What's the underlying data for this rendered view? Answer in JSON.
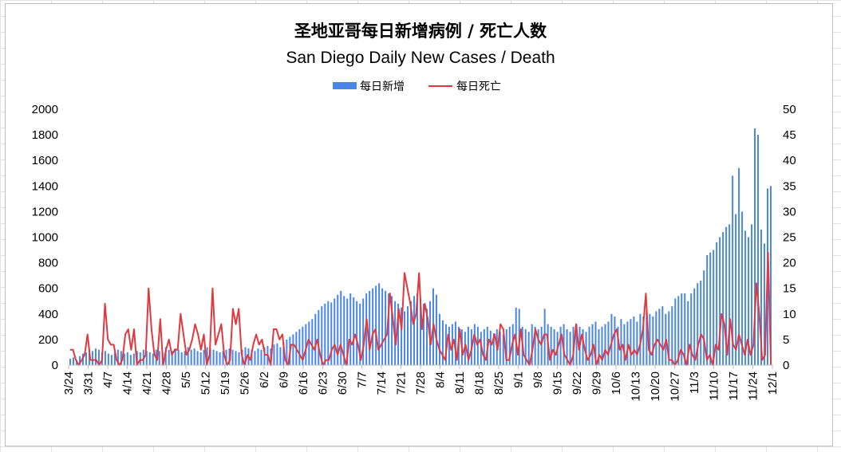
{
  "chart_data": {
    "type": "bar+line",
    "title": "圣地亚哥每日新增病例 / 死亡人数",
    "subtitle": "San Diego Daily New Cases / Death",
    "legend_position": "top",
    "grid": false,
    "x_tick_labels": [
      "3/24",
      "3/31",
      "4/7",
      "4/14",
      "4/21",
      "4/28",
      "5/5",
      "5/12",
      "5/19",
      "5/26",
      "6/2",
      "6/9",
      "6/16",
      "6/23",
      "6/30",
      "7/7",
      "7/14",
      "7/21",
      "7/28",
      "8/4",
      "8/11",
      "8/18",
      "8/25",
      "9/1",
      "9/8",
      "9/15",
      "9/22",
      "9/29",
      "10/6",
      "10/13",
      "10/20",
      "10/27",
      "11/3",
      "11/10",
      "11/17",
      "11/24",
      "12/1"
    ],
    "y_left": {
      "min": 0,
      "max": 2000,
      "step": 200
    },
    "y_right": {
      "min": 0,
      "max": 50,
      "step": 5
    },
    "series": [
      {
        "name": "每日新增",
        "type": "bar",
        "axis": "left",
        "color": "#4a86e8",
        "values": [
          50,
          60,
          40,
          70,
          90,
          100,
          120,
          110,
          130,
          120,
          100,
          110,
          90,
          80,
          100,
          120,
          110,
          90,
          100,
          80,
          90,
          110,
          100,
          120,
          110,
          100,
          90,
          120,
          110,
          100,
          140,
          120,
          110,
          130,
          120,
          100,
          110,
          140,
          120,
          130,
          110,
          100,
          120,
          140,
          130,
          120,
          110,
          100,
          110,
          120,
          130,
          120,
          110,
          100,
          120,
          140,
          130,
          120,
          110,
          130,
          120,
          140,
          150,
          130,
          160,
          170,
          140,
          180,
          200,
          220,
          240,
          260,
          280,
          300,
          320,
          340,
          360,
          400,
          430,
          460,
          480,
          500,
          490,
          520,
          550,
          580,
          540,
          520,
          560,
          530,
          500,
          480,
          520,
          560,
          580,
          600,
          620,
          640,
          600,
          580,
          560,
          540,
          500,
          480,
          450,
          420,
          460,
          500,
          540,
          560,
          520,
          480,
          440,
          500,
          600,
          550,
          400,
          350,
          320,
          300,
          320,
          340,
          300,
          280,
          260,
          300,
          280,
          320,
          300,
          260,
          280,
          300,
          270,
          250,
          280,
          260,
          240,
          280,
          300,
          320,
          450,
          440,
          300,
          280,
          260,
          320,
          300,
          280,
          300,
          440,
          320,
          300,
          280,
          260,
          300,
          320,
          280,
          260,
          300,
          320,
          300,
          280,
          260,
          300,
          320,
          340,
          280,
          300,
          320,
          340,
          400,
          380,
          300,
          360,
          320,
          340,
          360,
          380,
          340,
          400,
          380,
          420,
          400,
          380,
          420,
          440,
          460,
          400,
          420,
          460,
          520,
          540,
          560,
          560,
          500,
          560,
          600,
          640,
          660,
          740,
          860,
          880,
          900,
          960,
          1000,
          1040,
          1080,
          1100,
          1480,
          1180,
          1540,
          1200,
          1050,
          1000,
          1100,
          1850,
          1800,
          1060,
          950,
          1380,
          1400
        ]
      },
      {
        "name": "每日死亡",
        "type": "line",
        "axis": "right",
        "color": "#e0393e",
        "values": [
          3,
          3,
          1,
          0,
          1,
          2,
          6,
          1,
          1,
          1,
          0,
          1,
          12,
          5,
          4,
          4,
          1,
          0,
          1,
          6,
          7,
          3,
          7,
          0,
          1,
          1,
          2,
          15,
          7,
          2,
          1,
          9,
          0,
          3,
          5,
          2,
          3,
          3,
          10,
          6,
          2,
          3,
          5,
          8,
          6,
          3,
          6,
          0,
          2,
          15,
          4,
          6,
          8,
          2,
          0,
          1,
          11,
          8,
          11,
          2,
          0,
          2,
          1,
          4,
          6,
          4,
          5,
          2,
          2,
          0,
          7,
          7,
          5,
          6,
          1,
          0,
          4,
          4,
          3,
          2,
          1,
          3,
          5,
          4,
          3,
          5,
          2,
          0,
          1,
          1,
          3,
          4,
          2,
          4,
          2,
          0,
          5,
          4,
          6,
          4,
          1,
          4,
          9,
          3,
          6,
          7,
          3,
          4,
          5,
          6,
          14,
          9,
          4,
          11,
          7,
          18,
          15,
          12,
          8,
          10,
          18,
          7,
          12,
          9,
          4,
          8,
          5,
          3,
          2,
          1,
          6,
          3,
          5,
          1,
          7,
          2,
          4,
          1,
          3,
          6,
          4,
          5,
          2,
          1,
          5,
          4,
          6,
          3,
          8,
          7,
          1,
          1,
          4,
          6,
          2,
          7,
          2,
          1,
          0,
          3,
          7,
          5,
          4,
          6,
          6,
          1,
          3,
          2,
          4,
          6,
          2,
          1,
          0,
          2,
          8,
          3,
          6,
          3,
          1,
          2,
          4,
          0,
          2,
          1,
          3,
          2,
          4,
          6,
          7,
          3,
          4,
          1,
          4,
          2,
          3,
          2,
          4,
          7,
          14,
          3,
          2,
          4,
          5,
          4,
          3,
          5,
          1,
          1,
          0,
          1,
          3,
          2,
          0,
          4,
          2,
          1,
          4,
          6,
          5,
          1,
          2,
          0,
          4,
          3,
          10,
          8,
          2,
          9,
          4,
          3,
          6,
          4,
          2,
          5,
          2,
          4,
          16,
          10,
          1,
          2,
          22,
          0
        ]
      }
    ]
  }
}
